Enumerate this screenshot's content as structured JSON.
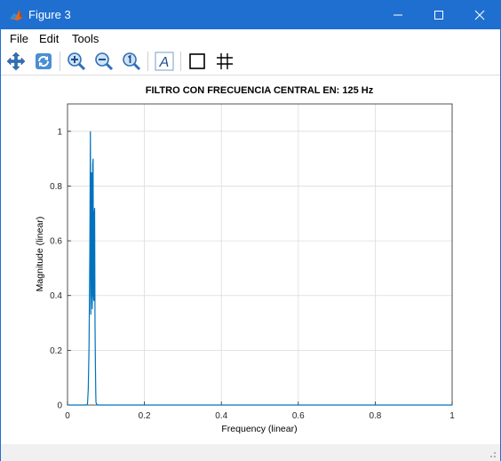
{
  "window": {
    "title": "Figure 3",
    "accent_color": "#1f6fd1",
    "controls": [
      "minimize",
      "maximize",
      "close"
    ]
  },
  "menu": {
    "items": [
      "File",
      "Edit",
      "Tools"
    ]
  },
  "toolbar": {
    "tools": [
      "pan-icon",
      "rotate-icon",
      "zoom-in-icon",
      "zoom-out-icon",
      "zoom-reset-icon",
      "text-icon",
      "box-icon",
      "grid-icon"
    ]
  },
  "chart_data": {
    "type": "line",
    "title": "FILTRO CON FRECUENCIA CENTRAL EN: 125 Hz",
    "xlabel": "Frequency (linear)",
    "ylabel": "Magnitude (linear)",
    "xlim": [
      0,
      1
    ],
    "ylim": [
      0,
      1.1
    ],
    "xticks": [
      "0",
      "0.2",
      "0.4",
      "0.6",
      "0.8",
      "1"
    ],
    "yticks": [
      "0",
      "0.2",
      "0.4",
      "0.6",
      "0.8",
      "1"
    ],
    "grid": true,
    "line_color": "#0072bd",
    "series": [
      {
        "x": [
          0,
          0.045,
          0.05,
          0.052,
          0.054,
          0.056,
          0.058,
          0.0595,
          0.0605,
          0.0615,
          0.0625,
          0.0635,
          0.0645,
          0.0655,
          0.0665,
          0.0675,
          0.0685,
          0.0695,
          0.0705,
          0.0715,
          0.0725,
          0.0735,
          0.074,
          0.076,
          0.08,
          0.1,
          0.2,
          0.4,
          0.6,
          0.8,
          1
        ],
        "y": [
          0,
          0,
          0.001,
          0.005,
          0.06,
          0.22,
          0.55,
          1.0,
          0.33,
          0.82,
          0.85,
          0.4,
          0.35,
          0.88,
          0.9,
          0.4,
          0.38,
          0.7,
          0.72,
          0.3,
          0.15,
          0.04,
          0.01,
          0.002,
          0,
          0,
          0,
          0,
          0,
          0,
          0
        ]
      }
    ]
  }
}
